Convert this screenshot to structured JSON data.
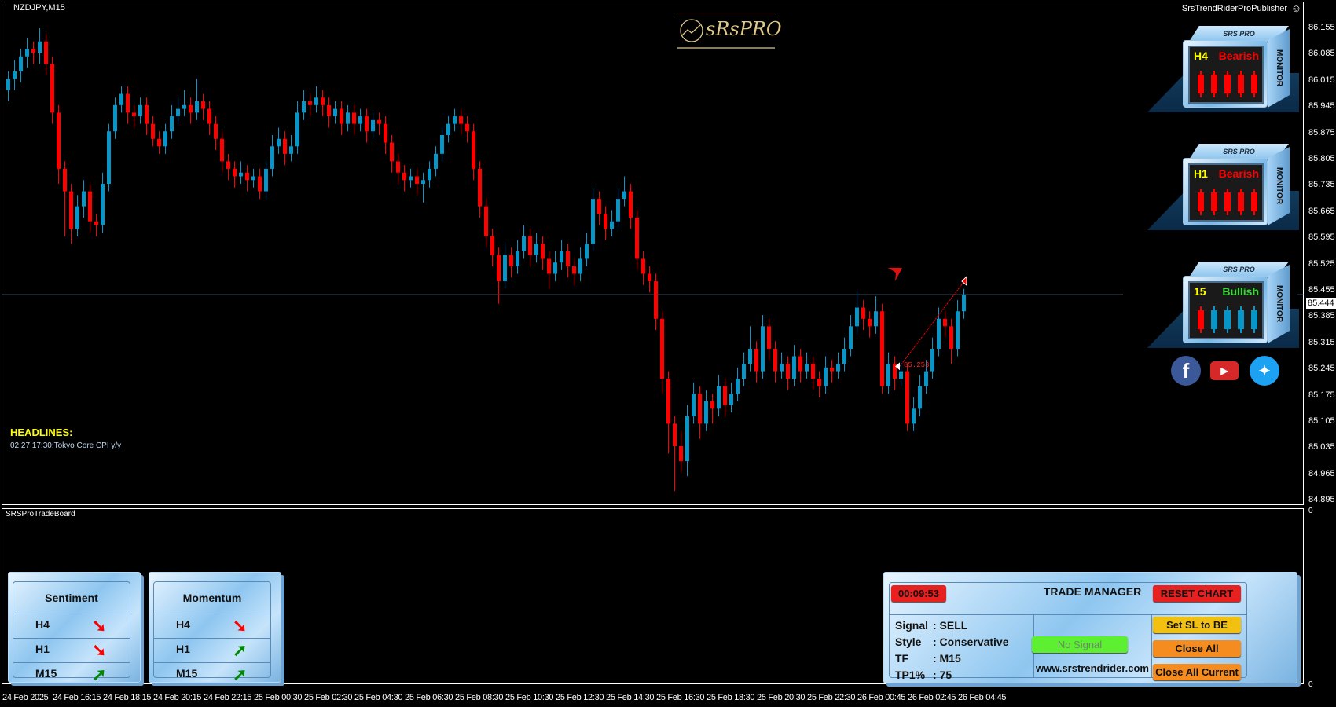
{
  "chart": {
    "symbol": "NZDJPY,M15",
    "publisher": "SrsTrendRiderProPublisher",
    "publisher_icon": "smiley-icon",
    "logo_text": "sRsPRO",
    "current_price": "85.444",
    "price_axis": [
      "86.155",
      "86.085",
      "86.015",
      "85.945",
      "85.875",
      "85.805",
      "85.735",
      "85.665",
      "85.595",
      "85.525",
      "85.455",
      "85.385",
      "85.315",
      "85.245",
      "85.175",
      "85.105",
      "85.035",
      "84.965",
      "84.895"
    ],
    "price_range": [
      84.895,
      86.155
    ],
    "time_axis": [
      "24 Feb 2025",
      "24 Feb 16:15",
      "24 Feb 18:15",
      "24 Feb 20:15",
      "24 Feb 22:15",
      "25 Feb 00:30",
      "25 Feb 02:30",
      "25 Feb 04:30",
      "25 Feb 06:30",
      "25 Feb 08:30",
      "25 Feb 10:30",
      "25 Feb 12:30",
      "25 Feb 14:30",
      "25 Feb 16:30",
      "25 Feb 18:30",
      "25 Feb 20:30",
      "25 Feb 22:30",
      "26 Feb 00:45",
      "26 Feb 02:45",
      "26 Feb 04:45"
    ],
    "colors": {
      "bull": "#0895c8",
      "bear": "#ff0000",
      "price_line": "#8090a0"
    },
    "signal_arrow": "sell",
    "entry_label": "85.253",
    "candles_ohlc": [
      [
        85.99,
        86.04,
        85.96,
        86.02
      ],
      [
        86.02,
        86.07,
        85.99,
        86.04
      ],
      [
        86.04,
        86.1,
        86.01,
        86.08
      ],
      [
        86.08,
        86.13,
        86.05,
        86.1
      ],
      [
        86.1,
        86.12,
        86.06,
        86.09
      ],
      [
        86.09,
        86.155,
        86.06,
        86.12
      ],
      [
        86.12,
        86.14,
        86.03,
        86.06
      ],
      [
        86.06,
        86.08,
        85.9,
        85.93
      ],
      [
        85.93,
        85.95,
        85.74,
        85.78
      ],
      [
        85.78,
        85.8,
        85.6,
        85.72
      ],
      [
        85.72,
        85.74,
        85.58,
        85.62
      ],
      [
        85.62,
        85.71,
        85.6,
        85.68
      ],
      [
        85.68,
        85.75,
        85.65,
        85.72
      ],
      [
        85.72,
        85.74,
        85.61,
        85.64
      ],
      [
        85.64,
        85.66,
        85.6,
        85.63
      ],
      [
        85.63,
        85.77,
        85.61,
        85.74
      ],
      [
        85.74,
        85.9,
        85.72,
        85.88
      ],
      [
        85.88,
        85.97,
        85.86,
        85.95
      ],
      [
        85.95,
        86.0,
        85.93,
        85.98
      ],
      [
        85.98,
        86.0,
        85.9,
        85.93
      ],
      [
        85.93,
        85.95,
        85.89,
        85.92
      ],
      [
        85.92,
        85.97,
        85.9,
        85.95
      ],
      [
        85.95,
        85.97,
        85.87,
        85.9
      ],
      [
        85.9,
        85.92,
        85.84,
        85.86
      ],
      [
        85.86,
        85.88,
        85.82,
        85.84
      ],
      [
        85.84,
        85.9,
        85.82,
        85.88
      ],
      [
        85.88,
        85.95,
        85.86,
        85.92
      ],
      [
        85.92,
        85.97,
        85.9,
        85.94
      ],
      [
        85.94,
        85.99,
        85.92,
        85.95
      ],
      [
        85.95,
        85.97,
        85.9,
        85.93
      ],
      [
        85.93,
        86.02,
        85.91,
        85.96
      ],
      [
        85.96,
        85.98,
        85.91,
        85.94
      ],
      [
        85.94,
        85.96,
        85.87,
        85.9
      ],
      [
        85.9,
        85.92,
        85.83,
        85.86
      ],
      [
        85.86,
        85.88,
        85.77,
        85.8
      ],
      [
        85.8,
        85.82,
        85.75,
        85.78
      ],
      [
        85.78,
        85.8,
        85.73,
        85.76
      ],
      [
        85.76,
        85.8,
        85.74,
        85.77
      ],
      [
        85.77,
        85.79,
        85.72,
        85.75
      ],
      [
        85.75,
        85.78,
        85.73,
        85.76
      ],
      [
        85.76,
        85.78,
        85.7,
        85.72
      ],
      [
        85.72,
        85.8,
        85.7,
        85.78
      ],
      [
        85.78,
        85.87,
        85.76,
        85.84
      ],
      [
        85.84,
        85.89,
        85.82,
        85.86
      ],
      [
        85.86,
        85.88,
        85.79,
        85.82
      ],
      [
        85.82,
        85.87,
        85.8,
        85.84
      ],
      [
        85.84,
        85.96,
        85.82,
        85.93
      ],
      [
        85.93,
        85.99,
        85.91,
        85.96
      ],
      [
        85.96,
        85.98,
        85.92,
        85.95
      ],
      [
        85.95,
        86.0,
        85.93,
        85.97
      ],
      [
        85.97,
        85.99,
        85.92,
        85.95
      ],
      [
        85.95,
        85.97,
        85.89,
        85.92
      ],
      [
        85.92,
        85.96,
        85.9,
        85.94
      ],
      [
        85.94,
        85.96,
        85.87,
        85.9
      ],
      [
        85.9,
        85.95,
        85.88,
        85.93
      ],
      [
        85.93,
        85.95,
        85.87,
        85.9
      ],
      [
        85.9,
        85.94,
        85.88,
        85.92
      ],
      [
        85.92,
        85.94,
        85.85,
        85.88
      ],
      [
        85.88,
        85.93,
        85.86,
        85.91
      ],
      [
        85.91,
        85.93,
        85.87,
        85.9
      ],
      [
        85.9,
        85.92,
        85.82,
        85.85
      ],
      [
        85.85,
        85.87,
        85.77,
        85.8
      ],
      [
        85.8,
        85.82,
        85.74,
        85.77
      ],
      [
        85.77,
        85.79,
        85.72,
        85.75
      ],
      [
        85.75,
        85.78,
        85.73,
        85.76
      ],
      [
        85.76,
        85.78,
        85.71,
        85.74
      ],
      [
        85.74,
        85.77,
        85.69,
        85.75
      ],
      [
        85.75,
        85.8,
        85.73,
        85.78
      ],
      [
        85.78,
        85.84,
        85.76,
        85.82
      ],
      [
        85.82,
        85.89,
        85.8,
        85.87
      ],
      [
        85.87,
        85.92,
        85.85,
        85.9
      ],
      [
        85.9,
        85.94,
        85.88,
        85.92
      ],
      [
        85.92,
        85.94,
        85.87,
        85.9
      ],
      [
        85.9,
        85.92,
        85.85,
        85.88
      ],
      [
        85.88,
        85.9,
        85.75,
        85.78
      ],
      [
        85.78,
        85.8,
        85.65,
        85.68
      ],
      [
        85.68,
        85.7,
        85.57,
        85.6
      ],
      [
        85.6,
        85.62,
        85.52,
        85.55
      ],
      [
        85.55,
        85.57,
        85.42,
        85.48
      ],
      [
        85.48,
        85.58,
        85.46,
        85.55
      ],
      [
        85.55,
        85.57,
        85.49,
        85.52
      ],
      [
        85.52,
        85.59,
        85.5,
        85.56
      ],
      [
        85.56,
        85.63,
        85.54,
        85.6
      ],
      [
        85.6,
        85.62,
        85.52,
        85.55
      ],
      [
        85.55,
        85.61,
        85.53,
        85.58
      ],
      [
        85.58,
        85.6,
        85.51,
        85.54
      ],
      [
        85.54,
        85.56,
        85.46,
        85.5
      ],
      [
        85.5,
        85.56,
        85.48,
        85.53
      ],
      [
        85.53,
        85.59,
        85.51,
        85.56
      ],
      [
        85.56,
        85.58,
        85.49,
        85.52
      ],
      [
        85.52,
        85.54,
        85.47,
        85.5
      ],
      [
        85.5,
        85.57,
        85.48,
        85.54
      ],
      [
        85.54,
        85.61,
        85.52,
        85.58
      ],
      [
        85.58,
        85.73,
        85.56,
        85.7
      ],
      [
        85.7,
        85.72,
        85.63,
        85.66
      ],
      [
        85.66,
        85.68,
        85.59,
        85.62
      ],
      [
        85.62,
        85.67,
        85.6,
        85.64
      ],
      [
        85.64,
        85.73,
        85.62,
        85.7
      ],
      [
        85.7,
        85.76,
        85.68,
        85.72
      ],
      [
        85.72,
        85.74,
        85.62,
        85.65
      ],
      [
        85.65,
        85.67,
        85.51,
        85.54
      ],
      [
        85.54,
        85.56,
        85.47,
        85.5
      ],
      [
        85.5,
        85.52,
        85.45,
        85.48
      ],
      [
        85.48,
        85.5,
        85.35,
        85.38
      ],
      [
        85.38,
        85.4,
        85.18,
        85.22
      ],
      [
        85.22,
        85.24,
        85.02,
        85.1
      ],
      [
        85.1,
        85.12,
        84.92,
        85.04
      ],
      [
        85.04,
        85.08,
        84.97,
        85.0
      ],
      [
        85.0,
        85.15,
        84.96,
        85.12
      ],
      [
        85.12,
        85.21,
        85.1,
        85.18
      ],
      [
        85.18,
        85.2,
        85.06,
        85.1
      ],
      [
        85.1,
        85.19,
        85.08,
        85.16
      ],
      [
        85.16,
        85.18,
        85.1,
        85.14
      ],
      [
        85.14,
        85.23,
        85.12,
        85.2
      ],
      [
        85.2,
        85.22,
        85.12,
        85.15
      ],
      [
        85.15,
        85.21,
        85.13,
        85.18
      ],
      [
        85.18,
        85.25,
        85.16,
        85.22
      ],
      [
        85.22,
        85.29,
        85.2,
        85.26
      ],
      [
        85.26,
        85.36,
        85.24,
        85.3
      ],
      [
        85.3,
        85.32,
        85.21,
        85.24
      ],
      [
        85.24,
        85.39,
        85.22,
        85.36
      ],
      [
        85.36,
        85.38,
        85.27,
        85.3
      ],
      [
        85.3,
        85.32,
        85.21,
        85.24
      ],
      [
        85.24,
        85.29,
        85.22,
        85.26
      ],
      [
        85.26,
        85.28,
        85.19,
        85.22
      ],
      [
        85.22,
        85.31,
        85.2,
        85.28
      ],
      [
        85.28,
        85.3,
        85.21,
        85.24
      ],
      [
        85.24,
        85.29,
        85.22,
        85.26
      ],
      [
        85.26,
        85.28,
        85.19,
        85.22
      ],
      [
        85.22,
        85.24,
        85.17,
        85.2
      ],
      [
        85.2,
        85.28,
        85.18,
        85.25
      ],
      [
        85.25,
        85.27,
        85.21,
        85.24
      ],
      [
        85.24,
        85.29,
        85.22,
        85.26
      ],
      [
        85.26,
        85.33,
        85.24,
        85.3
      ],
      [
        85.3,
        85.39,
        85.28,
        85.36
      ],
      [
        85.36,
        85.45,
        85.34,
        85.41
      ],
      [
        85.41,
        85.43,
        85.35,
        85.38
      ],
      [
        85.38,
        85.4,
        85.33,
        85.36
      ],
      [
        85.36,
        85.44,
        85.34,
        85.4
      ],
      [
        85.4,
        85.42,
        85.18,
        85.2
      ],
      [
        85.2,
        85.29,
        85.18,
        85.26
      ],
      [
        85.26,
        85.28,
        85.19,
        85.22
      ],
      [
        85.22,
        85.27,
        85.2,
        85.24
      ],
      [
        85.24,
        85.26,
        85.08,
        85.1
      ],
      [
        85.1,
        85.17,
        85.08,
        85.14
      ],
      [
        85.14,
        85.23,
        85.12,
        85.2
      ],
      [
        85.2,
        85.27,
        85.18,
        85.24
      ],
      [
        85.24,
        85.33,
        85.22,
        85.3
      ],
      [
        85.3,
        85.41,
        85.28,
        85.38
      ],
      [
        85.38,
        85.4,
        85.33,
        85.36
      ],
      [
        85.36,
        85.38,
        85.26,
        85.3
      ],
      [
        85.3,
        85.43,
        85.28,
        85.4
      ],
      [
        85.4,
        85.46,
        85.38,
        85.444
      ]
    ]
  },
  "headlines": {
    "title": "HEADLINES:",
    "items": [
      "02.27 17:30:Tokyo Core CPI y/y"
    ]
  },
  "monitors": [
    {
      "brand": "SRS PRO",
      "side": "MONITOR",
      "tf": "H4",
      "status": "Bearish",
      "status_color": "#ff0000",
      "bars": [
        "bear",
        "bear",
        "bear",
        "bear",
        "bear"
      ]
    },
    {
      "brand": "SRS PRO",
      "side": "MONITOR",
      "tf": "H1",
      "status": "Bearish",
      "status_color": "#ff0000",
      "bars": [
        "bear",
        "bear",
        "bear",
        "bear",
        "bear"
      ]
    },
    {
      "brand": "SRS PRO",
      "side": "MONITOR",
      "tf": "15",
      "status": "Bullish",
      "status_color": "#33dd33",
      "bars": [
        "bear",
        "bull",
        "bull",
        "bull",
        "bull"
      ]
    }
  ],
  "social": [
    {
      "name": "facebook",
      "glyph": "f",
      "color": "#3b5998"
    },
    {
      "name": "youtube",
      "glyph": "▶",
      "color": "#d62828"
    },
    {
      "name": "twitter",
      "glyph": "🐦",
      "color": "#1da1f2"
    }
  ],
  "subwindow": {
    "label": "SRSProTradeBoard",
    "axis_top": "0",
    "axis_bottom": "0"
  },
  "sentiment": {
    "title": "Sentiment",
    "rows": [
      {
        "tf": "H4",
        "dir": "down",
        "glyph": "➘",
        "color": "#ff0000"
      },
      {
        "tf": "H1",
        "dir": "down",
        "glyph": "➘",
        "color": "#ff0000"
      },
      {
        "tf": "M15",
        "dir": "up",
        "glyph": "➚",
        "color": "#008800"
      }
    ]
  },
  "momentum": {
    "title": "Momentum",
    "rows": [
      {
        "tf": "H4",
        "dir": "down",
        "glyph": "➘",
        "color": "#ff0000"
      },
      {
        "tf": "H1",
        "dir": "up",
        "glyph": "➚",
        "color": "#008800"
      },
      {
        "tf": "M15",
        "dir": "up",
        "glyph": "➚",
        "color": "#008800"
      }
    ]
  },
  "trade_manager": {
    "title": "TRADE MANAGER",
    "timer": "00:09:53",
    "reset_label": "RESET CHART",
    "fields": [
      {
        "label": "Signal",
        "value": ": SELL"
      },
      {
        "label": "Style",
        "value": ": Conservative"
      },
      {
        "label": "TF",
        "value": ": M15"
      },
      {
        "label": "TP1%",
        "value": ": 75"
      }
    ],
    "signal_status": "No Signal",
    "website": "www.srstrendrider.com",
    "buttons": {
      "sl_be": "Set SL to BE",
      "close_all": "Close All",
      "close_all_current": "Close All Current"
    }
  }
}
